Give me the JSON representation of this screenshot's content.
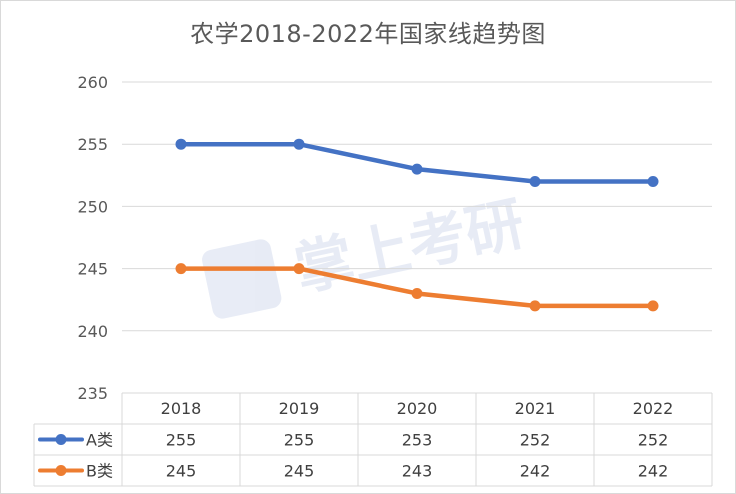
{
  "chart_data": {
    "type": "line",
    "title": "农学2018-2022年国家线趋势图",
    "categories": [
      "2018",
      "2019",
      "2020",
      "2021",
      "2022"
    ],
    "series": [
      {
        "name": "A类",
        "values": [
          255,
          255,
          253,
          252,
          252
        ],
        "color": "#4472c4"
      },
      {
        "name": "B类",
        "values": [
          245,
          245,
          243,
          242,
          242
        ],
        "color": "#ed7d31"
      }
    ],
    "yticks": [
      "260",
      "255",
      "250",
      "245",
      "240",
      "235"
    ],
    "ylim": [
      235,
      260
    ],
    "grid": true,
    "legend": "data-table",
    "watermark": "掌上考研"
  }
}
